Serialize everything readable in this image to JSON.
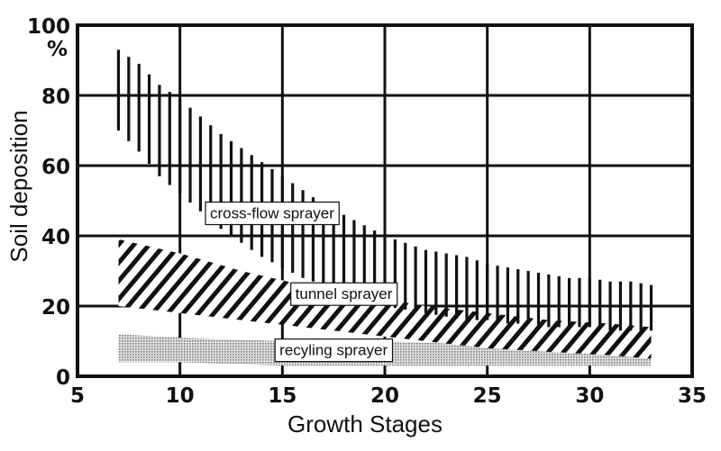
{
  "chart_data": {
    "type": "area",
    "title": "",
    "xlabel": "Growth Stages",
    "ylabel": "Soil deposition",
    "y_unit": "%",
    "xlim": [
      5,
      35
    ],
    "ylim": [
      0,
      100
    ],
    "x_ticks": [
      5,
      10,
      15,
      20,
      25,
      30,
      35
    ],
    "y_ticks": [
      0,
      20,
      40,
      60,
      80,
      100
    ],
    "grid": true,
    "series": [
      {
        "name": "cross-flow sprayer",
        "pattern": "vertical-hatch",
        "x": [
          7,
          8,
          9,
          10,
          11,
          12,
          13,
          14,
          15,
          16,
          17,
          18,
          19,
          20,
          21,
          22,
          23,
          24,
          25,
          26,
          27,
          28,
          29,
          30,
          31,
          32,
          33
        ],
        "upper": [
          93,
          89,
          83,
          79,
          74,
          69,
          65,
          61,
          57,
          53,
          49,
          46,
          43,
          40,
          38,
          36,
          35,
          34,
          32,
          31,
          30,
          29,
          28,
          28,
          27,
          27,
          26
        ],
        "lower": [
          70,
          64,
          57,
          52,
          47,
          42,
          38,
          34,
          31,
          28,
          26,
          24,
          22,
          20,
          19,
          18,
          17,
          16,
          16,
          15,
          15,
          14,
          14,
          14,
          13,
          13,
          13
        ]
      },
      {
        "name": "tunnel sprayer",
        "pattern": "diagonal-hatch",
        "x": [
          7,
          10,
          13,
          16,
          19,
          22,
          25,
          28,
          31,
          33
        ],
        "upper": [
          39,
          35,
          30,
          26,
          23,
          20,
          18,
          16,
          15,
          14
        ],
        "lower": [
          20,
          18,
          16,
          14,
          12,
          10,
          8,
          7,
          6,
          5
        ]
      },
      {
        "name": "recyling sprayer",
        "pattern": "dots",
        "x": [
          7,
          10,
          15,
          20,
          25,
          30,
          33
        ],
        "upper": [
          12,
          11,
          10,
          10,
          9,
          9,
          9
        ],
        "lower": [
          4,
          4,
          3,
          3,
          3,
          3,
          3
        ]
      }
    ]
  },
  "colors": {
    "ink": "#111111",
    "background": "#ffffff",
    "label_box": "#ffffff"
  }
}
